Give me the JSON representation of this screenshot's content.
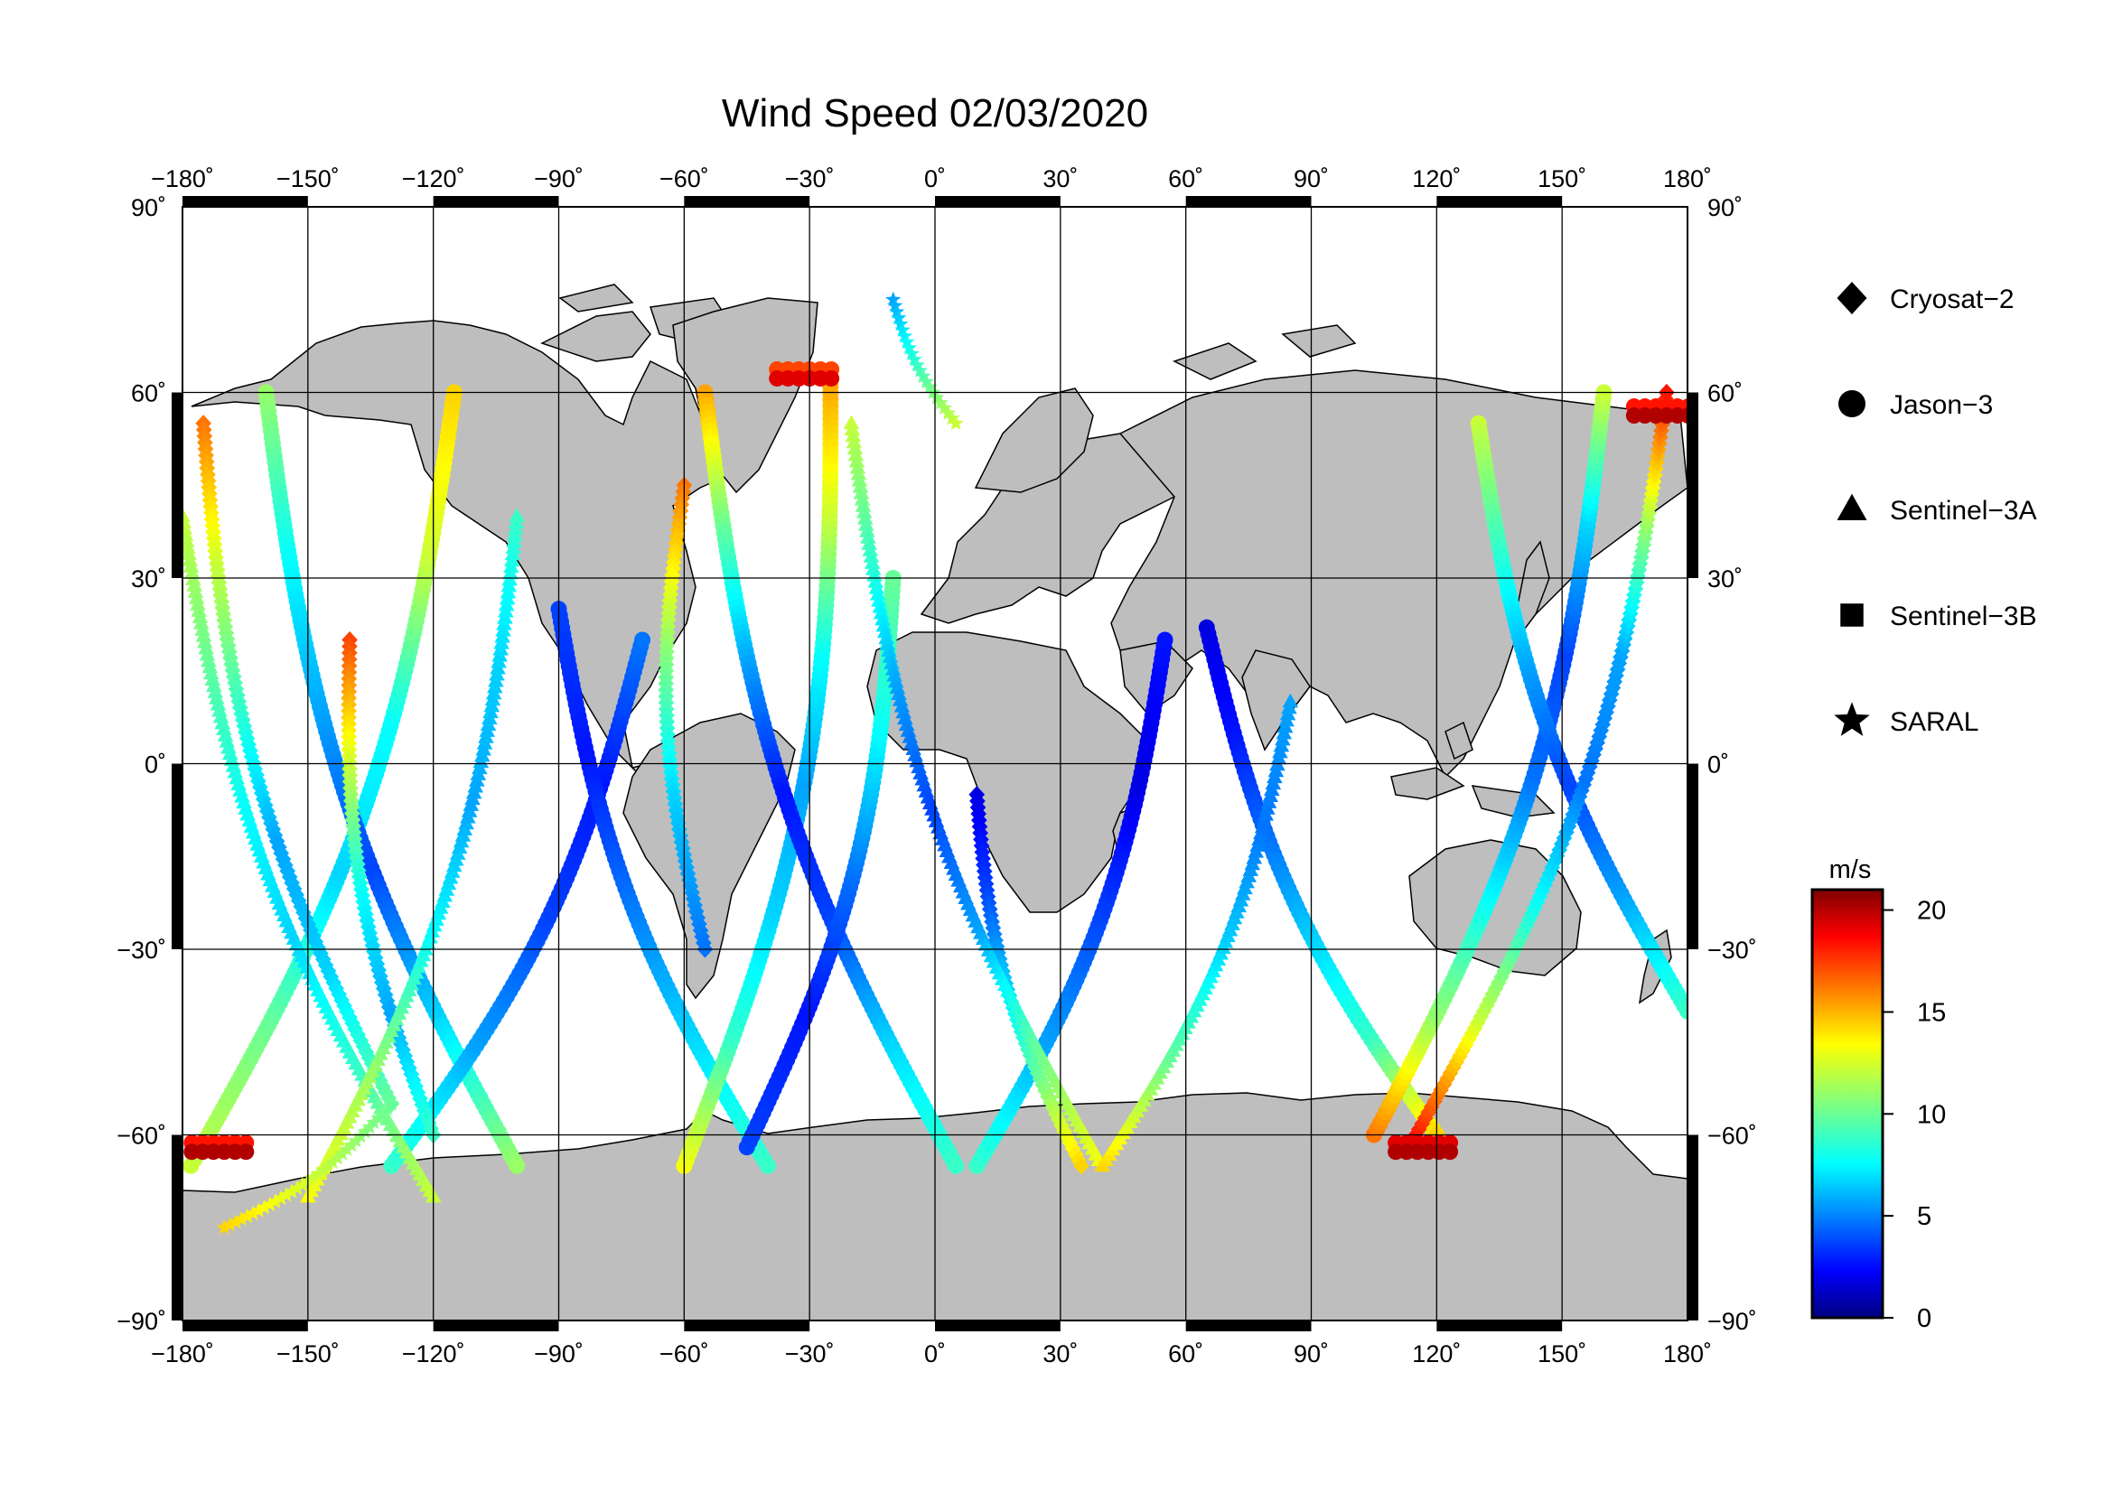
{
  "map": {
    "title": "Wind Speed 02/03/2020",
    "projection": "equirectangular",
    "lon_range": [
      -180,
      180
    ],
    "lat_range": [
      -90,
      90
    ],
    "lon_ticks": [
      -180,
      -150,
      -120,
      -90,
      -60,
      -30,
      0,
      30,
      60,
      90,
      120,
      150,
      180
    ],
    "lat_ticks": [
      -90,
      -60,
      -30,
      0,
      30,
      60,
      90
    ],
    "degree_symbol": "˚",
    "grid": true,
    "land_color": "#bebebe",
    "ocean_color": "#ffffff"
  },
  "legend": {
    "placement": "right",
    "items": [
      {
        "label": "Cryosat−2",
        "symbol": "diamond"
      },
      {
        "label": "Jason−3",
        "symbol": "circle"
      },
      {
        "label": "Sentinel−3A",
        "symbol": "triangle"
      },
      {
        "label": "Sentinel−3B",
        "symbol": "square"
      },
      {
        "label": "SARAL",
        "symbol": "star"
      }
    ]
  },
  "colorbar": {
    "unit": "m/s",
    "range": [
      0,
      21
    ],
    "ticks": [
      0,
      5,
      10,
      15,
      20
    ],
    "colormap": "jet"
  },
  "chart_data": {
    "type": "scatter",
    "x_variable": "longitude",
    "y_variable": "latitude",
    "value_variable": "wind speed (m/s)",
    "tracks": [
      {
        "satellite": "Jason-3",
        "start": [
          -178,
          -65
        ],
        "end": [
          -115,
          60
        ],
        "speeds": [
          12,
          10,
          7,
          8,
          12,
          14
        ]
      },
      {
        "satellite": "Jason-3",
        "start": [
          -160,
          60
        ],
        "end": [
          -100,
          -65
        ],
        "speeds": [
          11,
          8,
          6,
          4,
          7,
          11
        ]
      },
      {
        "satellite": "Jason-3",
        "start": [
          -130,
          -65
        ],
        "end": [
          -70,
          20
        ],
        "speeds": [
          9,
          6,
          4,
          3,
          5
        ]
      },
      {
        "satellite": "Jason-3",
        "start": [
          -90,
          25
        ],
        "end": [
          -40,
          -65
        ],
        "speeds": [
          4,
          3,
          5,
          7,
          9
        ]
      },
      {
        "satellite": "Jason-3",
        "start": [
          -60,
          -65
        ],
        "end": [
          -25,
          62
        ],
        "speeds": [
          13,
          9,
          7,
          6,
          8,
          12,
          15
        ]
      },
      {
        "satellite": "Jason-3",
        "start": [
          -55,
          60
        ],
        "end": [
          5,
          -65
        ],
        "speeds": [
          15,
          10,
          6,
          3,
          4,
          7,
          9
        ]
      },
      {
        "satellite": "Jason-3",
        "start": [
          -45,
          -62
        ],
        "end": [
          -10,
          30
        ],
        "speeds": [
          4,
          3,
          5,
          8,
          10
        ]
      },
      {
        "satellite": "Jason-3",
        "start": [
          10,
          -65
        ],
        "end": [
          55,
          20
        ],
        "speeds": [
          9,
          6,
          4,
          2,
          3
        ]
      },
      {
        "satellite": "Jason-3",
        "start": [
          65,
          22
        ],
        "end": [
          120,
          -60
        ],
        "speeds": [
          2,
          3,
          5,
          7,
          9,
          14
        ]
      },
      {
        "satellite": "Jason-3",
        "start": [
          105,
          -60
        ],
        "end": [
          160,
          60
        ],
        "speeds": [
          16,
          11,
          8,
          5,
          4,
          7,
          12
        ]
      },
      {
        "satellite": "Jason-3",
        "start": [
          130,
          55
        ],
        "end": [
          180,
          -40
        ],
        "speeds": [
          12,
          9,
          6,
          4,
          6,
          9
        ]
      },
      {
        "satellite": "Cryosat-2",
        "start": [
          -175,
          55
        ],
        "end": [
          -130,
          -55
        ],
        "speeds": [
          16,
          12,
          9,
          6,
          7,
          10
        ]
      },
      {
        "satellite": "Cryosat-2",
        "start": [
          -140,
          20
        ],
        "end": [
          -120,
          -60
        ],
        "speeds": [
          17,
          12,
          8,
          6,
          9
        ]
      },
      {
        "satellite": "Cryosat-2",
        "start": [
          -60,
          45
        ],
        "end": [
          -55,
          -30
        ],
        "speeds": [
          16,
          11,
          7,
          5
        ]
      },
      {
        "satellite": "Cryosat-2",
        "start": [
          10,
          -5
        ],
        "end": [
          35,
          -65
        ],
        "speeds": [
          2,
          4,
          7,
          10,
          14
        ]
      },
      {
        "satellite": "Cryosat-2",
        "start": [
          115,
          -60
        ],
        "end": [
          175,
          60
        ],
        "speeds": [
          18,
          12,
          8,
          5,
          6,
          11,
          18
        ]
      },
      {
        "satellite": "Sentinel-3A",
        "start": [
          -180,
          40
        ],
        "end": [
          -120,
          -70
        ],
        "speeds": [
          12,
          10,
          8,
          7,
          9,
          12
        ]
      },
      {
        "satellite": "Sentinel-3A",
        "start": [
          -150,
          -70
        ],
        "end": [
          -100,
          40
        ],
        "speeds": [
          13,
          11,
          8,
          6,
          7,
          9
        ]
      },
      {
        "satellite": "Sentinel-3A",
        "start": [
          -20,
          55
        ],
        "end": [
          40,
          -65
        ],
        "speeds": [
          12,
          9,
          6,
          4,
          6,
          10,
          13
        ]
      },
      {
        "satellite": "Sentinel-3A",
        "start": [
          40,
          -65
        ],
        "end": [
          85,
          10
        ],
        "speeds": [
          14,
          10,
          7,
          5,
          6
        ]
      },
      {
        "satellite": "SARAL",
        "start": [
          -170,
          -75
        ],
        "end": [
          -130,
          -55
        ],
        "speeds": [
          14,
          12,
          10
        ]
      },
      {
        "satellite": "SARAL",
        "start": [
          -10,
          75
        ],
        "end": [
          5,
          55
        ],
        "speeds": [
          6,
          9,
          12
        ]
      }
    ],
    "notable_regions": [
      {
        "description_lon_lat": [
          -30,
          63
        ],
        "speeds": [
          17,
          19
        ]
      },
      {
        "description_lon_lat": [
          175,
          57
        ],
        "speeds": [
          18,
          20
        ]
      },
      {
        "description_lon_lat": [
          118,
          -62
        ],
        "speeds": [
          19,
          20
        ]
      },
      {
        "description_lon_lat": [
          -170,
          -62
        ],
        "speeds": [
          18,
          20
        ]
      }
    ]
  }
}
